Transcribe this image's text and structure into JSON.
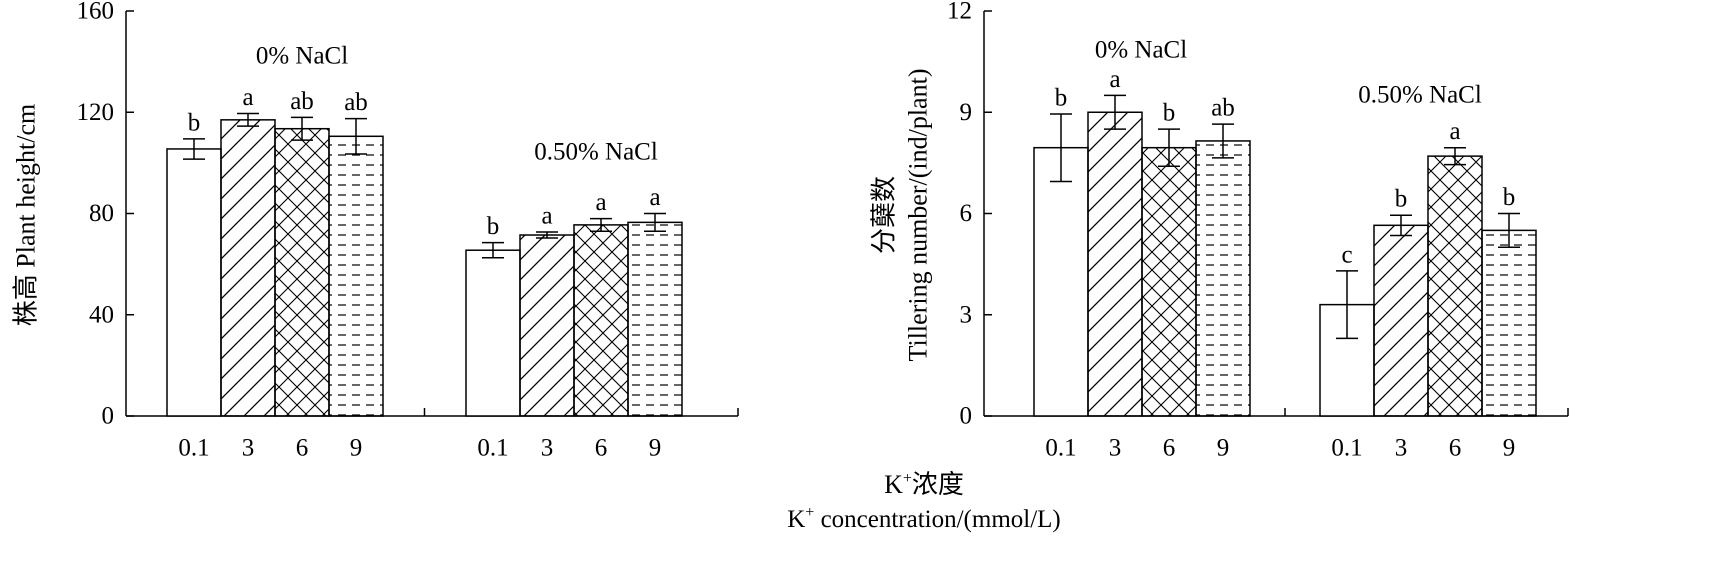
{
  "x_title": {
    "line1_base": "K",
    "line1_sup": "+",
    "line1_rest": "浓度",
    "line2_base": "K",
    "line2_sup": "+",
    "line2_rest": " concentration/(mmol/L)"
  },
  "chart_data": [
    {
      "type": "bar",
      "ylabel": "株高 Plant height/cm",
      "ylim": [
        0,
        160
      ],
      "yticks": [
        0,
        40,
        80,
        120,
        160
      ],
      "x_tick_labels": [
        "0.1",
        "3",
        "6",
        "9"
      ],
      "pattern_order": [
        "open",
        "diagonal-hatch",
        "cross-hatch",
        "dashed-lines"
      ],
      "groups": [
        {
          "label": "0% NaCl",
          "categories": [
            "0.1",
            "3",
            "6",
            "9"
          ],
          "values": [
            105.5,
            117,
            113.5,
            110.5
          ],
          "errors": [
            4,
            2.5,
            4.5,
            7
          ],
          "significance": [
            "b",
            "a",
            "ab",
            "ab"
          ]
        },
        {
          "label": "0.50% NaCl",
          "categories": [
            "0.1",
            "3",
            "6",
            "9"
          ],
          "values": [
            65.5,
            71.5,
            75.5,
            76.5
          ],
          "errors": [
            3,
            1.2,
            2.5,
            3.5
          ],
          "significance": [
            "b",
            "a",
            "a",
            "a"
          ]
        }
      ]
    },
    {
      "type": "bar",
      "ylabel_line1": "分蘖数",
      "ylabel_line2": "Tillering number/(ind/plant)",
      "ylim": [
        0,
        12
      ],
      "yticks": [
        0,
        3,
        6,
        9,
        12
      ],
      "x_tick_labels": [
        "0.1",
        "3",
        "6",
        "9"
      ],
      "pattern_order": [
        "open",
        "diagonal-hatch",
        "cross-hatch",
        "dashed-lines"
      ],
      "groups": [
        {
          "label": "0% NaCl",
          "categories": [
            "0.1",
            "3",
            "6",
            "9"
          ],
          "values": [
            7.95,
            9.0,
            7.95,
            8.15
          ],
          "errors": [
            1.0,
            0.5,
            0.55,
            0.5
          ],
          "significance": [
            "b",
            "a",
            "b",
            "ab"
          ]
        },
        {
          "label": "0.50% NaCl",
          "categories": [
            "0.1",
            "3",
            "6",
            "9"
          ],
          "values": [
            3.3,
            5.65,
            7.7,
            5.5
          ],
          "errors": [
            1.0,
            0.3,
            0.25,
            0.5
          ],
          "significance": [
            "c",
            "b",
            "a",
            "b"
          ]
        }
      ]
    }
  ]
}
